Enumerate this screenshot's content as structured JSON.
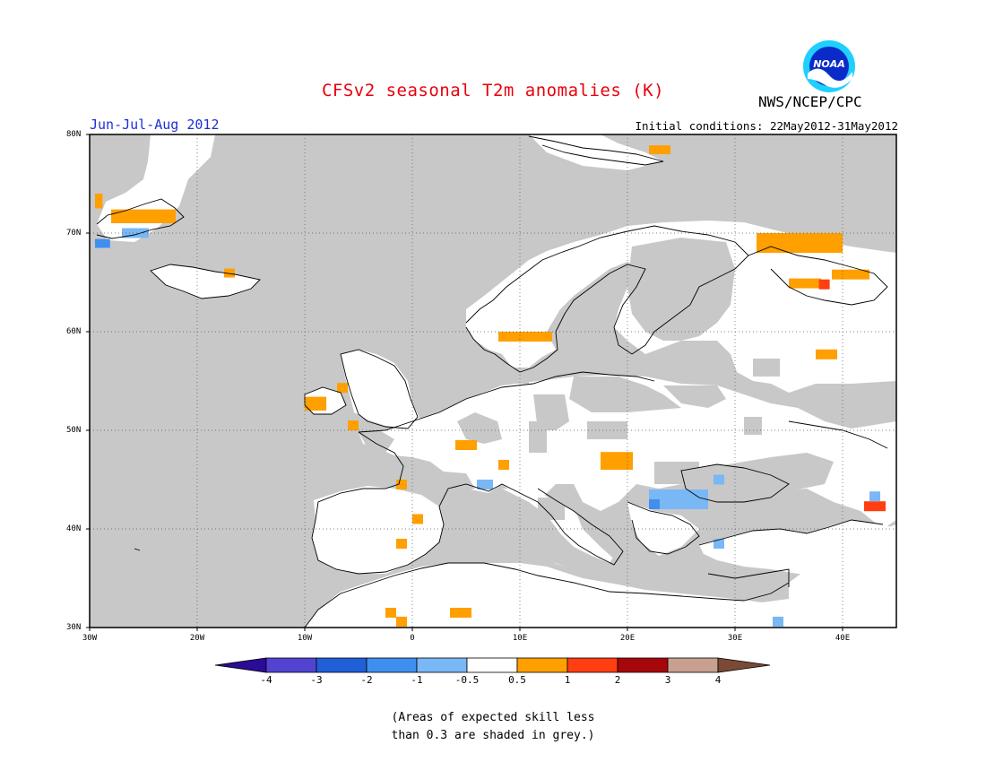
{
  "header": {
    "title": "CFSv2 seasonal T2m anomalies (K)",
    "season": "Jun-Jul-Aug 2012",
    "initial_conditions": "Initial conditions: 22May2012-31May2012",
    "organization": "NWS/NCEP/CPC",
    "logo_text": "NOAA",
    "logo_icon": "noaa-logo"
  },
  "map": {
    "lon_range": [
      -30,
      45
    ],
    "lat_range": [
      30,
      80
    ],
    "lat_labels": [
      "80N",
      "70N",
      "60N",
      "50N",
      "40N",
      "30N"
    ],
    "lon_labels": [
      "30W",
      "20W",
      "10W",
      "0",
      "10E",
      "20E",
      "30E",
      "40E"
    ],
    "colors": {
      "ocean_low_skill": "#c8c8c8",
      "no_signal": "#ffffff",
      "coast": "#000000"
    },
    "anomaly_cells": [
      {
        "lon": -29.5,
        "lat": 72.5,
        "w": 0.7,
        "h": 1.5,
        "bin": "0.5-1"
      },
      {
        "lon": -28,
        "lat": 71,
        "w": 6,
        "h": 1.4,
        "bin": "0.5-1"
      },
      {
        "lon": -27,
        "lat": 69.5,
        "w": 2.5,
        "h": 1,
        "bin": "-1--0.5"
      },
      {
        "lon": -29.5,
        "lat": 68.5,
        "w": 1.4,
        "h": 0.9,
        "bin": "-2--1"
      },
      {
        "lon": -17.5,
        "lat": 65.5,
        "w": 1,
        "h": 0.9,
        "bin": "0.5-1"
      },
      {
        "lon": 22,
        "lat": 78,
        "w": 2,
        "h": 0.9,
        "bin": "0.5-1"
      },
      {
        "lon": 32,
        "lat": 68,
        "w": 8,
        "h": 2,
        "bin": "0.5-1"
      },
      {
        "lon": 39,
        "lat": 65.3,
        "w": 3.5,
        "h": 1,
        "bin": "0.5-1"
      },
      {
        "lon": 35,
        "lat": 64.4,
        "w": 3,
        "h": 1,
        "bin": "0.5-1"
      },
      {
        "lon": 37.8,
        "lat": 64.3,
        "w": 1,
        "h": 1,
        "bin": "1-2"
      },
      {
        "lon": 8,
        "lat": 59,
        "w": 3,
        "h": 1,
        "bin": "0.5-1"
      },
      {
        "lon": 11,
        "lat": 59,
        "w": 2,
        "h": 1,
        "bin": "0.5-1"
      },
      {
        "lon": 37.5,
        "lat": 57.2,
        "w": 2,
        "h": 1,
        "bin": "0.5-1"
      },
      {
        "lon": -10,
        "lat": 52,
        "w": 2,
        "h": 1.4,
        "bin": "0.5-1"
      },
      {
        "lon": -7,
        "lat": 53.8,
        "w": 1,
        "h": 1,
        "bin": "0.5-1"
      },
      {
        "lon": -6,
        "lat": 50,
        "w": 1,
        "h": 1,
        "bin": "0.5-1"
      },
      {
        "lon": 4,
        "lat": 48,
        "w": 2,
        "h": 1,
        "bin": "0.5-1"
      },
      {
        "lon": 8,
        "lat": 46,
        "w": 1,
        "h": 1,
        "bin": "0.5-1"
      },
      {
        "lon": 17.5,
        "lat": 46,
        "w": 3,
        "h": 1.8,
        "bin": "0.5-1"
      },
      {
        "lon": -1.5,
        "lat": 44,
        "w": 1,
        "h": 1,
        "bin": "0.5-1"
      },
      {
        "lon": 6,
        "lat": 44,
        "w": 1.5,
        "h": 1,
        "bin": "-1--0.5"
      },
      {
        "lon": 22,
        "lat": 42,
        "w": 5.5,
        "h": 2,
        "bin": "-1--0.5"
      },
      {
        "lon": 22,
        "lat": 42,
        "w": 1,
        "h": 1,
        "bin": "-2--1"
      },
      {
        "lon": 28,
        "lat": 44.5,
        "w": 1,
        "h": 1,
        "bin": "-1--0.5"
      },
      {
        "lon": 28,
        "lat": 38,
        "w": 1,
        "h": 1,
        "bin": "-1--0.5"
      },
      {
        "lon": 42,
        "lat": 41.8,
        "w": 2,
        "h": 1,
        "bin": "1-2"
      },
      {
        "lon": 42.5,
        "lat": 42.8,
        "w": 1,
        "h": 1,
        "bin": "-1--0.5"
      },
      {
        "lon": 0,
        "lat": 40.5,
        "w": 1,
        "h": 1,
        "bin": "0.5-1"
      },
      {
        "lon": -1.5,
        "lat": 38,
        "w": 1,
        "h": 1,
        "bin": "0.5-1"
      },
      {
        "lon": -2.5,
        "lat": 31,
        "w": 1,
        "h": 1,
        "bin": "0.5-1"
      },
      {
        "lon": -1.5,
        "lat": 30.1,
        "w": 1,
        "h": 1,
        "bin": "0.5-1"
      },
      {
        "lon": 3.5,
        "lat": 31,
        "w": 2,
        "h": 1,
        "bin": "0.5-1"
      },
      {
        "lon": 33.5,
        "lat": 30.1,
        "w": 1,
        "h": 1,
        "bin": "-1--0.5"
      }
    ]
  },
  "colorbar": {
    "labels": [
      "-4",
      "-3",
      "-2",
      "-1",
      "-0.5",
      "0.5",
      "1",
      "2",
      "3",
      "4"
    ],
    "bins": [
      {
        "id": "<-4",
        "color": "#2a0c96"
      },
      {
        "id": "-4--3",
        "color": "#5244d0"
      },
      {
        "id": "-3--2",
        "color": "#1f5fd8"
      },
      {
        "id": "-2--1",
        "color": "#3f8fef"
      },
      {
        "id": "-1--0.5",
        "color": "#7ab7f5"
      },
      {
        "id": "-0.5-0.5",
        "color": "#ffffff"
      },
      {
        "id": "0.5-1",
        "color": "#ff9f00"
      },
      {
        "id": "1-2",
        "color": "#ff3e12"
      },
      {
        "id": "2-3",
        "color": "#a5070b"
      },
      {
        "id": "3-4",
        "color": "#c8a090"
      },
      {
        "id": ">4",
        "color": "#7a4a36"
      }
    ]
  },
  "footnote": {
    "line1": "(Areas of expected skill less",
    "line2": "than 0.3 are shaded in grey.)"
  }
}
